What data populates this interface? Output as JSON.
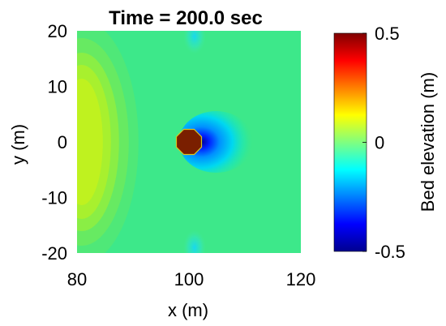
{
  "chart_data": {
    "type": "heatmap",
    "title": "Time = 200.0 sec",
    "xlabel": "x (m)",
    "ylabel": "y (m)",
    "xlim": [
      80,
      120
    ],
    "ylim": [
      -20,
      20
    ],
    "x_ticks": [
      "80",
      "100",
      "120"
    ],
    "y_ticks": [
      "20",
      "10",
      "0",
      "-10",
      "-20"
    ],
    "x_tick_values": [
      80,
      100,
      120
    ],
    "y_tick_values": [
      20,
      10,
      0,
      -10,
      -20
    ],
    "colorbar": {
      "label": "Bed elevation (m)",
      "range": [
        -0.5,
        0.5
      ],
      "ticks": [
        "0.5",
        "0",
        "-0.5"
      ],
      "tick_values": [
        0.5,
        0,
        -0.5
      ],
      "colormap": "jet"
    },
    "features": [
      {
        "name": "pier",
        "shape": "octagon",
        "center_x": 100,
        "center_y": 0,
        "diameter": 4.5,
        "color": "#7a1f00"
      },
      {
        "name": "scour hole",
        "center_x": 104,
        "center_y": 0,
        "value": -0.5
      },
      {
        "name": "deposition mound",
        "center_x": 82,
        "center_y": 0,
        "value": 0.15
      },
      {
        "name": "upper lateral scour",
        "center_x": 101,
        "center_y": 19,
        "value": -0.1
      },
      {
        "name": "lower lateral scour",
        "center_x": 101,
        "center_y": -19,
        "value": -0.1
      }
    ],
    "background_value": 0
  }
}
